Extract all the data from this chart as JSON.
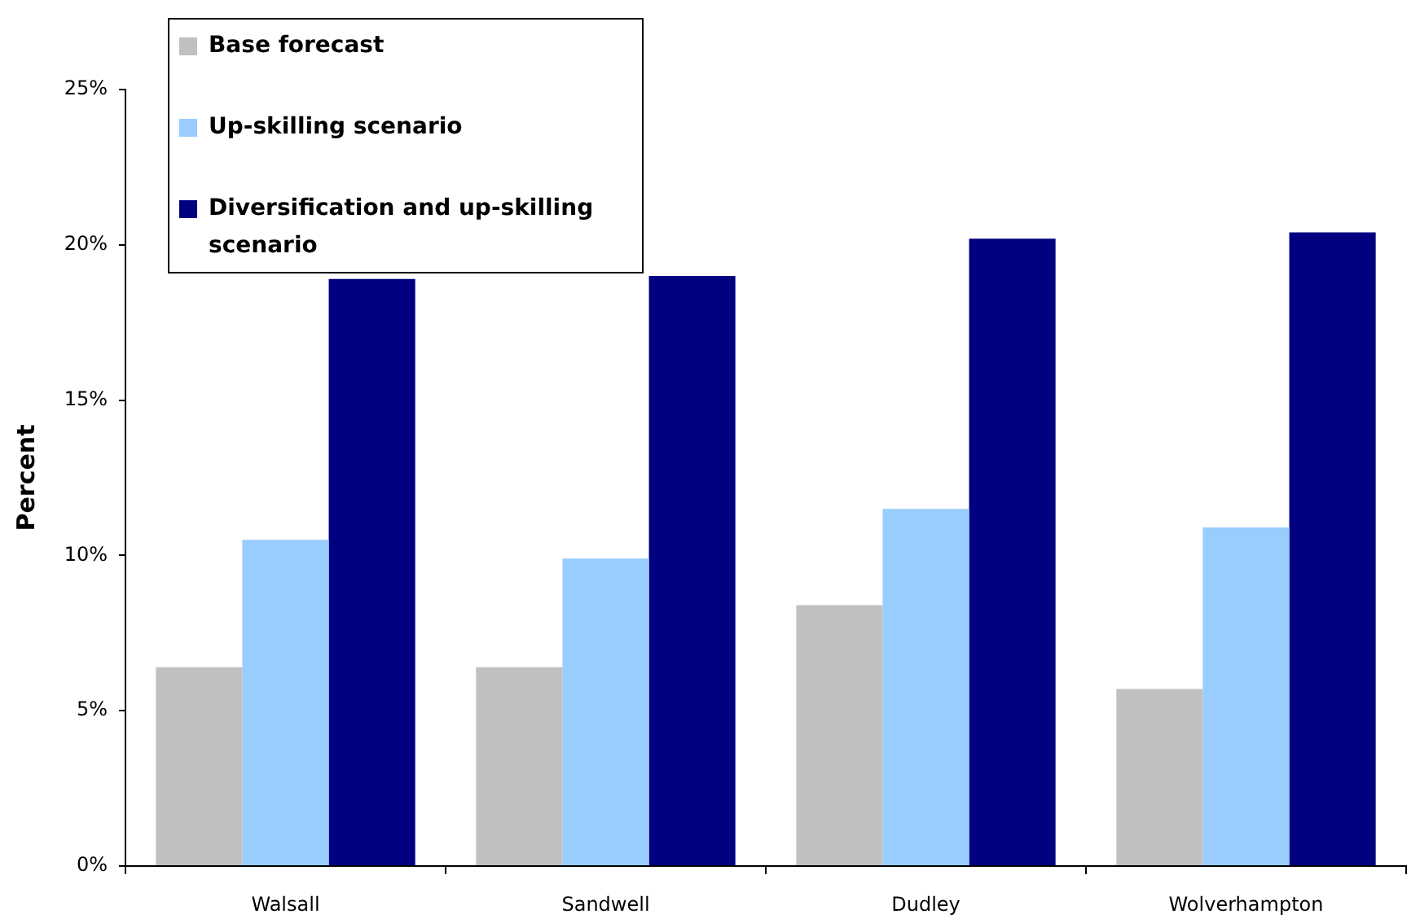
{
  "chart_data": {
    "type": "bar",
    "ylabel": "Percent",
    "categories": [
      "Walsall",
      "Sandwell",
      "Dudley",
      "Wolverhampton"
    ],
    "series": [
      {
        "name": "Base forecast",
        "color": "#c0c0c0",
        "values": [
          6.4,
          6.4,
          8.4,
          5.7
        ]
      },
      {
        "name": "Up-skilling scenario",
        "color": "#99ccff",
        "values": [
          10.5,
          9.9,
          11.5,
          10.9
        ]
      },
      {
        "name": "Diversification and up-skilling scenario",
        "color": "#000080",
        "values": [
          18.9,
          19.0,
          20.2,
          20.4
        ]
      }
    ],
    "ylim": [
      0,
      25
    ],
    "yticks": [
      {
        "value": 0,
        "label": "0%"
      },
      {
        "value": 5,
        "label": "5%"
      },
      {
        "value": 10,
        "label": "10%"
      },
      {
        "value": 15,
        "label": "15%"
      },
      {
        "value": 20,
        "label": "20%"
      },
      {
        "value": 25,
        "label": "25%"
      }
    ],
    "grid": false,
    "legend": "top left"
  }
}
